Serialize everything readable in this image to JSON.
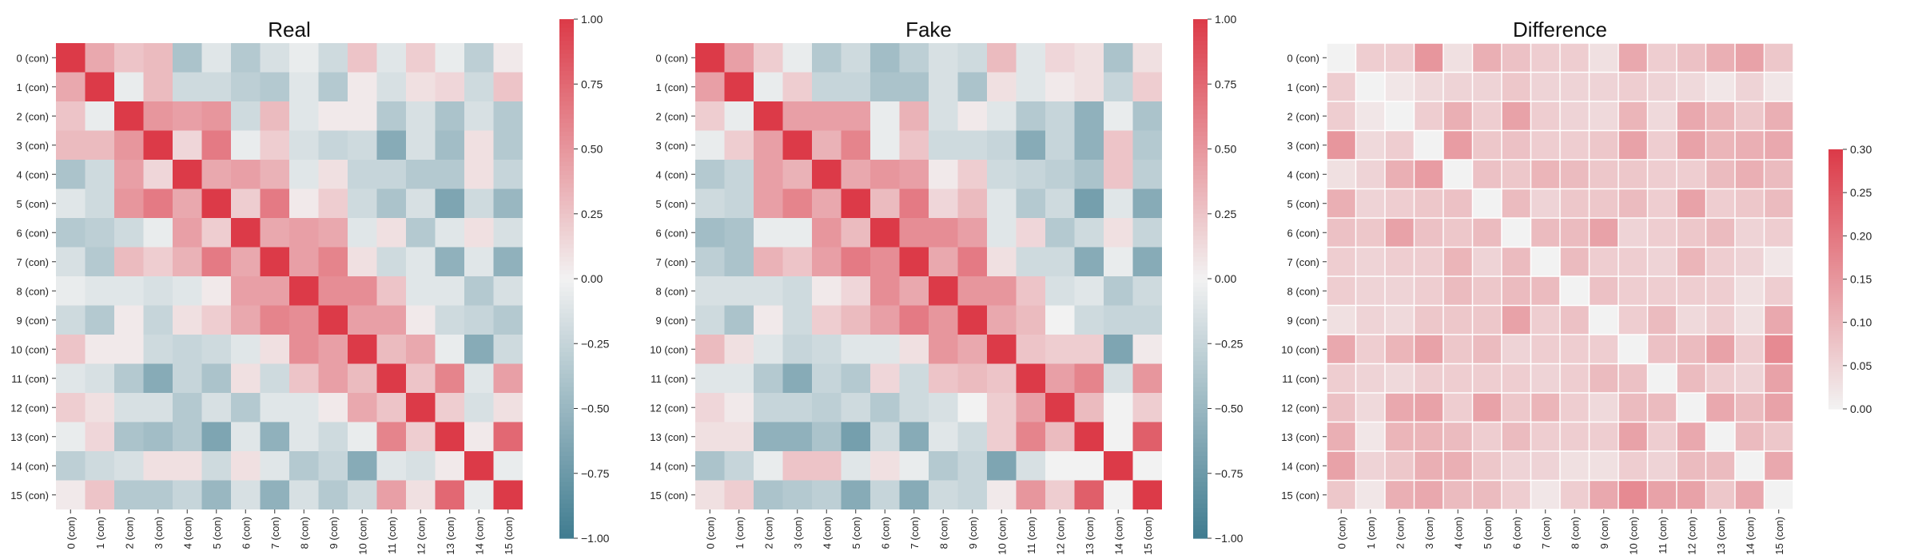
{
  "chart_data": [
    {
      "type": "heatmap",
      "title": "Real",
      "labels": [
        "0 (con)",
        "1 (con)",
        "2 (con)",
        "3 (con)",
        "4 (con)",
        "5 (con)",
        "6 (con)",
        "7 (con)",
        "8 (con)",
        "9 (con)",
        "10 (con)",
        "11 (con)",
        "12 (con)",
        "13 (con)",
        "14 (con)",
        "15 (con)"
      ],
      "colorbar": {
        "min": -1.0,
        "max": 1.0,
        "ticks": [
          "1.00",
          "0.75",
          "0.50",
          "0.25",
          "0.00",
          "−0.25",
          "−0.50",
          "−0.75",
          "−1.00"
        ],
        "tick_values": [
          1.0,
          0.75,
          0.5,
          0.25,
          0.0,
          -0.25,
          -0.5,
          -0.75,
          -1.0
        ]
      },
      "values": [
        [
          1.0,
          0.4,
          0.25,
          0.3,
          -0.4,
          -0.1,
          -0.35,
          -0.15,
          -0.05,
          -0.2,
          0.25,
          -0.1,
          0.2,
          -0.05,
          -0.3,
          0.05
        ],
        [
          0.4,
          1.0,
          -0.05,
          0.3,
          -0.2,
          -0.2,
          -0.3,
          -0.35,
          -0.1,
          -0.35,
          0.05,
          -0.15,
          0.1,
          0.15,
          -0.2,
          0.25
        ],
        [
          0.25,
          -0.05,
          1.0,
          0.5,
          0.45,
          0.5,
          -0.2,
          0.3,
          -0.1,
          0.05,
          0.05,
          -0.35,
          -0.15,
          -0.4,
          -0.15,
          -0.35
        ],
        [
          0.3,
          0.3,
          0.5,
          1.0,
          0.15,
          0.65,
          -0.05,
          0.2,
          -0.15,
          -0.25,
          -0.2,
          -0.6,
          -0.15,
          -0.45,
          0.1,
          -0.35
        ],
        [
          -0.4,
          -0.2,
          0.45,
          0.15,
          1.0,
          0.4,
          0.45,
          0.35,
          -0.1,
          0.1,
          -0.25,
          -0.25,
          -0.35,
          -0.35,
          0.1,
          -0.25
        ],
        [
          -0.1,
          -0.2,
          0.5,
          0.65,
          0.4,
          1.0,
          0.2,
          0.65,
          0.05,
          0.2,
          -0.2,
          -0.4,
          -0.15,
          -0.65,
          -0.2,
          -0.5
        ],
        [
          -0.35,
          -0.3,
          -0.2,
          -0.05,
          0.45,
          0.2,
          1.0,
          0.4,
          0.45,
          0.4,
          -0.1,
          0.1,
          -0.35,
          -0.1,
          0.1,
          -0.15
        ],
        [
          -0.15,
          -0.35,
          0.3,
          0.2,
          0.35,
          0.65,
          0.4,
          1.0,
          0.45,
          0.6,
          0.1,
          -0.2,
          -0.1,
          -0.55,
          -0.1,
          -0.55
        ],
        [
          -0.05,
          -0.1,
          -0.1,
          -0.15,
          -0.1,
          0.05,
          0.45,
          0.45,
          1.0,
          0.55,
          0.55,
          0.25,
          -0.1,
          -0.1,
          -0.35,
          -0.15
        ],
        [
          -0.2,
          -0.35,
          0.05,
          -0.25,
          0.1,
          0.2,
          0.4,
          0.6,
          0.55,
          1.0,
          0.45,
          0.45,
          0.05,
          -0.2,
          -0.25,
          -0.35
        ],
        [
          0.25,
          0.05,
          0.05,
          -0.2,
          -0.25,
          -0.2,
          -0.1,
          0.1,
          0.55,
          0.45,
          1.0,
          0.3,
          0.4,
          -0.05,
          -0.6,
          -0.2
        ],
        [
          -0.1,
          -0.15,
          -0.35,
          -0.6,
          -0.25,
          -0.4,
          0.1,
          -0.2,
          0.25,
          0.45,
          0.3,
          1.0,
          0.25,
          0.6,
          -0.1,
          0.45
        ],
        [
          0.2,
          0.1,
          -0.15,
          -0.15,
          -0.35,
          -0.15,
          -0.35,
          -0.1,
          -0.1,
          0.05,
          0.4,
          0.25,
          1.0,
          0.2,
          -0.15,
          0.1
        ],
        [
          -0.05,
          0.15,
          -0.4,
          -0.45,
          -0.35,
          -0.65,
          -0.1,
          -0.55,
          -0.1,
          -0.2,
          -0.05,
          0.6,
          0.2,
          1.0,
          0.05,
          0.75
        ],
        [
          -0.3,
          -0.2,
          -0.15,
          0.1,
          0.1,
          -0.2,
          0.1,
          -0.1,
          -0.35,
          -0.25,
          -0.6,
          -0.1,
          -0.15,
          0.05,
          1.0,
          -0.05
        ],
        [
          0.05,
          0.25,
          -0.35,
          -0.35,
          -0.25,
          -0.5,
          -0.15,
          -0.55,
          -0.15,
          -0.35,
          -0.2,
          0.45,
          0.1,
          0.75,
          -0.05,
          1.0
        ]
      ]
    },
    {
      "type": "heatmap",
      "title": "Fake",
      "labels": [
        "0 (con)",
        "1 (con)",
        "2 (con)",
        "3 (con)",
        "4 (con)",
        "5 (con)",
        "6 (con)",
        "7 (con)",
        "8 (con)",
        "9 (con)",
        "10 (con)",
        "11 (con)",
        "12 (con)",
        "13 (con)",
        "14 (con)",
        "15 (con)"
      ],
      "colorbar": {
        "min": -1.0,
        "max": 1.0,
        "ticks": [
          "1.00",
          "0.75",
          "0.50",
          "0.25",
          "0.00",
          "−0.25",
          "−0.50",
          "−0.75",
          "−1.00"
        ],
        "tick_values": [
          1.0,
          0.75,
          0.5,
          0.25,
          0.0,
          -0.25,
          -0.5,
          -0.75,
          -1.0
        ]
      },
      "values": [
        [
          1.0,
          0.45,
          0.2,
          -0.05,
          -0.35,
          -0.2,
          -0.45,
          -0.3,
          -0.15,
          -0.2,
          0.3,
          -0.1,
          0.15,
          0.1,
          -0.4,
          0.1
        ],
        [
          0.45,
          1.0,
          -0.05,
          0.2,
          -0.25,
          -0.25,
          -0.4,
          -0.4,
          -0.15,
          -0.4,
          0.1,
          -0.1,
          0.05,
          0.1,
          -0.25,
          0.2
        ],
        [
          0.2,
          -0.05,
          1.0,
          0.45,
          0.45,
          0.45,
          -0.05,
          0.35,
          -0.15,
          0.05,
          -0.1,
          -0.35,
          -0.25,
          -0.55,
          -0.05,
          -0.4
        ],
        [
          -0.05,
          0.2,
          0.45,
          1.0,
          0.35,
          0.6,
          -0.05,
          0.25,
          -0.2,
          -0.2,
          -0.25,
          -0.6,
          -0.25,
          -0.55,
          0.25,
          -0.35
        ],
        [
          -0.35,
          -0.25,
          0.45,
          0.35,
          1.0,
          0.4,
          0.5,
          0.45,
          0.05,
          0.2,
          -0.2,
          -0.25,
          -0.3,
          -0.4,
          0.25,
          -0.3
        ],
        [
          -0.2,
          -0.25,
          0.45,
          0.6,
          0.4,
          1.0,
          0.3,
          0.65,
          0.15,
          0.3,
          -0.1,
          -0.35,
          -0.2,
          -0.7,
          -0.1,
          -0.6
        ],
        [
          -0.45,
          -0.4,
          -0.05,
          -0.05,
          0.5,
          0.3,
          1.0,
          0.55,
          0.55,
          0.45,
          -0.1,
          0.15,
          -0.35,
          -0.2,
          0.1,
          -0.25
        ],
        [
          -0.3,
          -0.4,
          0.35,
          0.25,
          0.45,
          0.65,
          0.55,
          1.0,
          0.4,
          0.65,
          0.1,
          -0.2,
          -0.2,
          -0.6,
          -0.05,
          -0.6
        ],
        [
          -0.15,
          -0.15,
          -0.15,
          -0.2,
          0.05,
          0.15,
          0.55,
          0.4,
          1.0,
          0.5,
          0.5,
          0.25,
          -0.15,
          -0.1,
          -0.35,
          -0.2
        ],
        [
          -0.2,
          -0.4,
          0.05,
          -0.2,
          0.2,
          0.3,
          0.45,
          0.65,
          0.5,
          1.0,
          0.4,
          0.3,
          0.0,
          -0.2,
          -0.25,
          -0.25
        ],
        [
          0.3,
          0.1,
          -0.1,
          -0.25,
          -0.2,
          -0.1,
          -0.1,
          0.1,
          0.5,
          0.4,
          1.0,
          0.25,
          0.2,
          0.2,
          -0.65,
          0.05
        ],
        [
          -0.1,
          -0.1,
          -0.35,
          -0.6,
          -0.25,
          -0.35,
          0.15,
          -0.2,
          0.25,
          0.3,
          0.25,
          1.0,
          0.45,
          0.6,
          -0.15,
          0.5
        ],
        [
          0.15,
          0.05,
          -0.25,
          -0.25,
          -0.3,
          -0.2,
          -0.35,
          -0.2,
          -0.15,
          0.0,
          0.2,
          0.45,
          1.0,
          0.3,
          0.0,
          0.2
        ],
        [
          0.1,
          0.1,
          -0.55,
          -0.55,
          -0.4,
          -0.7,
          -0.2,
          -0.6,
          -0.1,
          -0.2,
          0.2,
          0.6,
          0.3,
          1.0,
          0.0,
          0.8
        ],
        [
          -0.4,
          -0.25,
          -0.05,
          0.25,
          0.25,
          -0.1,
          0.1,
          -0.05,
          -0.35,
          -0.25,
          -0.65,
          -0.15,
          0.0,
          0.0,
          1.0,
          0.0
        ],
        [
          0.1,
          0.2,
          -0.4,
          -0.35,
          -0.3,
          -0.6,
          -0.25,
          -0.6,
          -0.2,
          -0.25,
          0.05,
          0.5,
          0.2,
          0.8,
          0.0,
          1.0
        ]
      ]
    },
    {
      "type": "heatmap",
      "title": "Difference",
      "labels": [
        "0 (con)",
        "1 (con)",
        "2 (con)",
        "3 (con)",
        "4 (con)",
        "5 (con)",
        "6 (con)",
        "7 (con)",
        "8 (con)",
        "9 (con)",
        "10 (con)",
        "11 (con)",
        "12 (con)",
        "13 (con)",
        "14 (con)",
        "15 (con)"
      ],
      "colorbar": {
        "min": 0.0,
        "max": 0.3,
        "ticks": [
          "0.30",
          "0.25",
          "0.20",
          "0.15",
          "0.10",
          "0.05",
          "0.00"
        ],
        "tick_values": [
          0.3,
          0.25,
          0.2,
          0.15,
          0.1,
          0.05,
          0.0
        ]
      },
      "values": [
        [
          0.0,
          0.06,
          0.06,
          0.15,
          0.03,
          0.11,
          0.08,
          0.06,
          0.06,
          0.03,
          0.12,
          0.06,
          0.08,
          0.11,
          0.13,
          0.07
        ],
        [
          0.06,
          0.0,
          0.02,
          0.04,
          0.05,
          0.05,
          0.07,
          0.05,
          0.05,
          0.05,
          0.06,
          0.05,
          0.04,
          0.02,
          0.05,
          0.02
        ],
        [
          0.06,
          0.02,
          0.0,
          0.06,
          0.11,
          0.06,
          0.13,
          0.06,
          0.05,
          0.04,
          0.1,
          0.04,
          0.12,
          0.1,
          0.07,
          0.11
        ],
        [
          0.15,
          0.04,
          0.06,
          0.0,
          0.14,
          0.07,
          0.08,
          0.06,
          0.06,
          0.07,
          0.13,
          0.06,
          0.13,
          0.1,
          0.11,
          0.12
        ],
        [
          0.03,
          0.05,
          0.11,
          0.14,
          0.0,
          0.08,
          0.07,
          0.1,
          0.09,
          0.07,
          0.07,
          0.06,
          0.06,
          0.09,
          0.11,
          0.09
        ],
        [
          0.11,
          0.05,
          0.06,
          0.07,
          0.08,
          0.0,
          0.09,
          0.05,
          0.07,
          0.07,
          0.09,
          0.06,
          0.13,
          0.06,
          0.07,
          0.09
        ],
        [
          0.08,
          0.07,
          0.13,
          0.08,
          0.07,
          0.09,
          0.0,
          0.09,
          0.09,
          0.13,
          0.05,
          0.06,
          0.07,
          0.09,
          0.05,
          0.06
        ],
        [
          0.06,
          0.05,
          0.06,
          0.06,
          0.1,
          0.05,
          0.09,
          0.0,
          0.09,
          0.06,
          0.06,
          0.05,
          0.1,
          0.06,
          0.05,
          0.02
        ],
        [
          0.06,
          0.05,
          0.05,
          0.06,
          0.09,
          0.07,
          0.09,
          0.09,
          0.0,
          0.08,
          0.06,
          0.06,
          0.06,
          0.06,
          0.03,
          0.06
        ],
        [
          0.03,
          0.05,
          0.04,
          0.07,
          0.07,
          0.07,
          0.13,
          0.06,
          0.08,
          0.0,
          0.06,
          0.09,
          0.04,
          0.06,
          0.03,
          0.12
        ],
        [
          0.12,
          0.06,
          0.1,
          0.13,
          0.07,
          0.09,
          0.05,
          0.06,
          0.06,
          0.06,
          0.0,
          0.08,
          0.09,
          0.13,
          0.06,
          0.17
        ],
        [
          0.06,
          0.05,
          0.04,
          0.06,
          0.06,
          0.06,
          0.06,
          0.05,
          0.06,
          0.09,
          0.08,
          0.0,
          0.09,
          0.06,
          0.05,
          0.13
        ],
        [
          0.08,
          0.04,
          0.12,
          0.13,
          0.06,
          0.13,
          0.07,
          0.1,
          0.06,
          0.04,
          0.09,
          0.09,
          0.0,
          0.12,
          0.09,
          0.13
        ],
        [
          0.11,
          0.02,
          0.1,
          0.1,
          0.09,
          0.06,
          0.09,
          0.06,
          0.06,
          0.06,
          0.13,
          0.06,
          0.12,
          0.0,
          0.09,
          0.07
        ],
        [
          0.13,
          0.05,
          0.07,
          0.11,
          0.11,
          0.07,
          0.05,
          0.05,
          0.03,
          0.03,
          0.06,
          0.05,
          0.09,
          0.09,
          0.0,
          0.12
        ],
        [
          0.07,
          0.02,
          0.11,
          0.12,
          0.09,
          0.09,
          0.06,
          0.02,
          0.06,
          0.12,
          0.17,
          0.13,
          0.13,
          0.07,
          0.12,
          0.0
        ]
      ]
    }
  ]
}
